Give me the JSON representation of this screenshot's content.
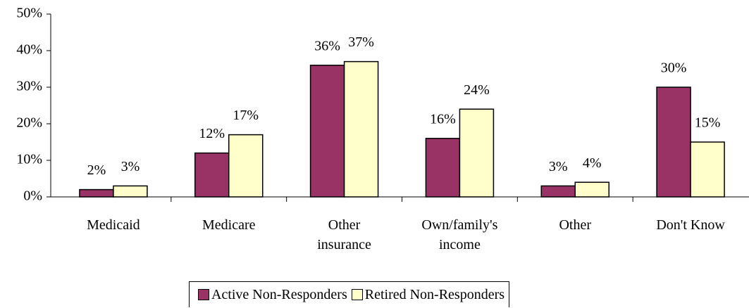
{
  "chart_data": {
    "type": "bar",
    "categories": [
      "Medicaid",
      "Medicare",
      "Other\ninsurance",
      "Own/family's\nincome",
      "Other",
      "Don't Know"
    ],
    "series": [
      {
        "name": "Active Non-Responders",
        "color": "#993366",
        "values": [
          2,
          12,
          36,
          16,
          3,
          30
        ],
        "value_labels": [
          "2%",
          "12%",
          "36%",
          "16%",
          "3%",
          "30%"
        ]
      },
      {
        "name": "Retired Non-Responders",
        "color": "#ffffcc",
        "values": [
          3,
          17,
          37,
          24,
          4,
          15
        ],
        "value_labels": [
          "3%",
          "17%",
          "37%",
          "24%",
          "4%",
          "15%"
        ]
      }
    ],
    "ylim": [
      0,
      50
    ],
    "yticks": [
      {
        "value": 0,
        "label": "0%"
      },
      {
        "value": 10,
        "label": "10%"
      },
      {
        "value": 20,
        "label": "20%"
      },
      {
        "value": 30,
        "label": "30%"
      },
      {
        "value": 40,
        "label": "40%"
      },
      {
        "value": 50,
        "label": "50%"
      }
    ],
    "grid": false,
    "legend": "bottom"
  }
}
